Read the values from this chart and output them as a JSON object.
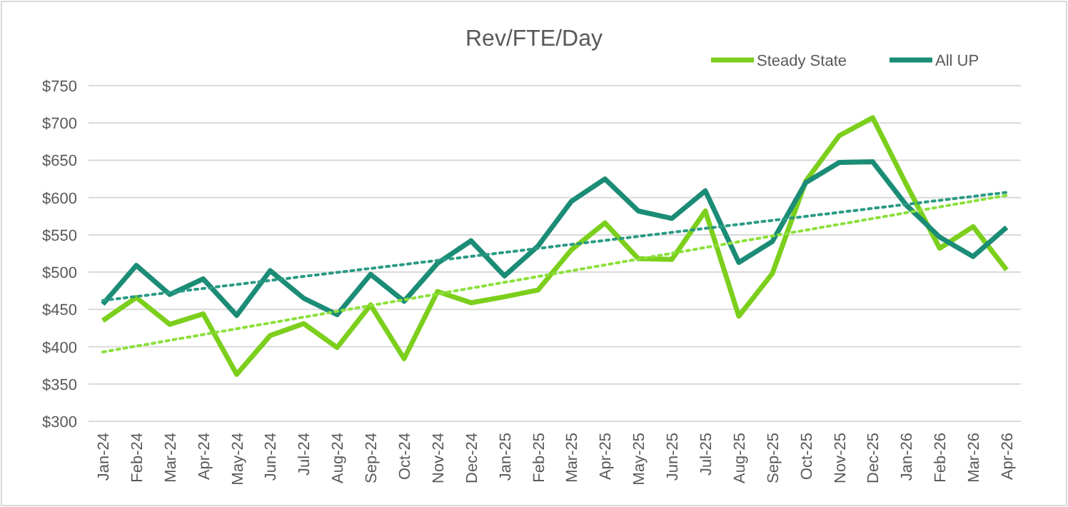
{
  "chart_data": {
    "type": "line",
    "title": "Rev/FTE/Day",
    "categories": [
      "Jan-24",
      "Feb-24",
      "Mar-24",
      "Apr-24",
      "May-24",
      "Jun-24",
      "Jul-24",
      "Aug-24",
      "Sep-24",
      "Oct-24",
      "Nov-24",
      "Dec-24",
      "Jan-25",
      "Feb-25",
      "Mar-25",
      "Apr-25",
      "May-25",
      "Jun-25",
      "Jul-25",
      "Aug-25",
      "Sep-25",
      "Oct-25",
      "Nov-25",
      "Dec-25",
      "Jan-26",
      "Feb-26",
      "Mar-26",
      "Apr-26"
    ],
    "series": [
      {
        "name": "Steady State",
        "color": "#7ccf1c",
        "values": [
          435,
          466,
          430,
          444,
          363,
          415,
          431,
          399,
          456,
          384,
          474,
          459,
          467,
          476,
          530,
          566,
          518,
          517,
          582,
          441,
          498,
          622,
          683,
          707,
          618,
          532,
          561,
          503
        ]
      },
      {
        "name": "All UP",
        "color": "#1b8c76",
        "values": [
          457,
          509,
          470,
          491,
          442,
          502,
          465,
          443,
          497,
          461,
          512,
          542,
          495,
          535,
          595,
          625,
          582,
          572,
          609,
          513,
          541,
          620,
          647,
          648,
          590,
          547,
          521,
          560
        ]
      },
      {
        "type": "line",
        "color": "#8be03a",
        "line_style": "dotted",
        "x": [
          "Jan-24",
          "Apr-26"
        ],
        "values": [
          393,
          603
        ]
      },
      {
        "type": "line",
        "color": "#2a9a85",
        "line_style": "dotted",
        "x": [
          "Jan-24",
          "Apr-26"
        ],
        "values": [
          462,
          607
        ]
      }
    ],
    "ylim": [
      300,
      750
    ],
    "yticks": [
      {
        "value": 300,
        "label": "$300"
      },
      {
        "value": 350,
        "label": "$350"
      },
      {
        "value": 400,
        "label": "$400"
      },
      {
        "value": 450,
        "label": "$450"
      },
      {
        "value": 500,
        "label": "$500"
      },
      {
        "value": 550,
        "label": "$550"
      },
      {
        "value": 600,
        "label": "$600"
      },
      {
        "value": 650,
        "label": "$650"
      },
      {
        "value": 700,
        "label": "$700"
      },
      {
        "value": 750,
        "label": "$750"
      }
    ],
    "grid": "y",
    "legend": "top right",
    "marker": "none",
    "line_style": "solid"
  }
}
